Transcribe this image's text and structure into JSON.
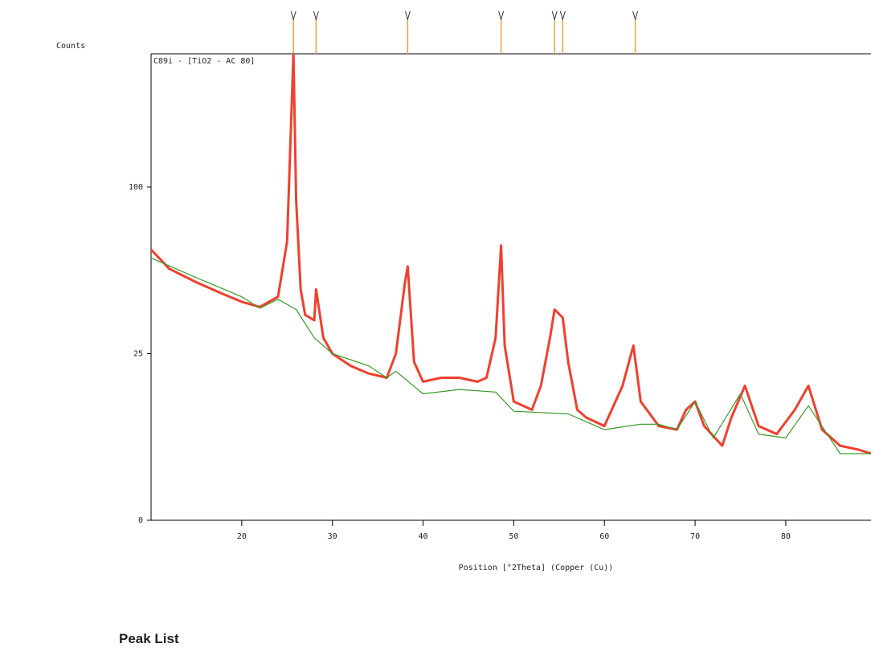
{
  "heading": "Peak List",
  "chart_data": {
    "type": "line",
    "title": "C89i - [TiO2 - AC 80]",
    "xlabel": "Position [°2Theta] (Copper (Cu))",
    "ylabel": "Counts",
    "xlim": [
      10,
      89.4
    ],
    "xticks": [
      20,
      30,
      40,
      50,
      60,
      70,
      80
    ],
    "ylim": [
      0,
      196
    ],
    "yticks": [
      0,
      25,
      100
    ],
    "yscale": "sqrt",
    "series": [
      {
        "color": "#f0402e",
        "x": [
          10,
          12,
          15,
          18,
          20,
          22,
          24,
          25,
          25.7,
          26,
          26.5,
          27,
          28,
          28.2,
          29,
          30,
          32,
          34,
          36,
          37,
          38,
          38.3,
          39,
          40,
          42,
          44,
          46,
          47,
          48,
          48.6,
          49,
          50,
          52,
          53,
          54,
          54.5,
          55.4,
          56,
          57,
          58,
          60,
          62,
          63.2,
          64,
          66,
          68,
          69,
          70,
          71,
          73,
          74,
          75.5,
          77,
          79,
          81,
          82.5,
          84,
          86,
          88,
          89.4
        ],
        "values": [
          66,
          57,
          51,
          46,
          43,
          41,
          45,
          70,
          196,
          92,
          48,
          38,
          36,
          48,
          30,
          25,
          21.5,
          19.4,
          18.3,
          25,
          51,
          58,
          22.6,
          17.3,
          18.3,
          18.3,
          17.3,
          18.3,
          30,
          68,
          27.5,
          12.7,
          11,
          16.3,
          30,
          40,
          37,
          22.6,
          11,
          9.5,
          8,
          16.3,
          27.5,
          12.7,
          8,
          7.4,
          11,
          12.7,
          8,
          5,
          9.5,
          16.3,
          8,
          6.7,
          11,
          16.3,
          7.4,
          5,
          4.5,
          4
        ]
      },
      {
        "color": "#3a9a2a",
        "x": [
          10,
          15,
          20,
          22,
          24,
          26,
          28,
          30,
          34,
          36,
          37,
          40,
          44,
          48,
          50,
          56,
          60,
          64,
          66,
          68,
          70,
          72,
          75,
          77,
          80,
          82.5,
          86,
          89.4
        ],
        "values": [
          62,
          53,
          45,
          40.5,
          44,
          40,
          30,
          25,
          21.5,
          18.3,
          20,
          14.4,
          15.4,
          14.8,
          10.7,
          10.2,
          7.4,
          8.3,
          8.3,
          7.4,
          12.7,
          6.1,
          14.4,
          6.7,
          6.1,
          11.8,
          4,
          4
        ]
      }
    ],
    "peaks": {
      "color": "#e8a040",
      "values": [
        25.7,
        28.2,
        38.3,
        48.6,
        54.5,
        55.4,
        63.4
      ]
    }
  }
}
